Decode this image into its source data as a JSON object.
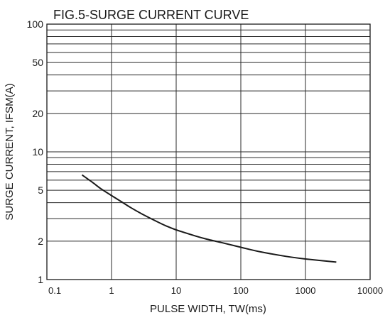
{
  "chart_data": {
    "type": "line",
    "title": "FIG.5-SURGE CURRENT CURVE",
    "xlabel": "PULSE WIDTH, TW(ms)",
    "ylabel": "SURGE CURRENT, IFSM(A)",
    "x_scale": "log",
    "y_scale": "log",
    "xlim": [
      0.1,
      10000
    ],
    "ylim": [
      1,
      100
    ],
    "x_ticks": [
      {
        "value": 0.1,
        "label": "0.1"
      },
      {
        "value": 1,
        "label": "1"
      },
      {
        "value": 10,
        "label": "10"
      },
      {
        "value": 100,
        "label": "100"
      },
      {
        "value": 1000,
        "label": "1000"
      },
      {
        "value": 10000,
        "label": "10000"
      }
    ],
    "y_ticks": [
      {
        "value": 1,
        "label": "1"
      },
      {
        "value": 2,
        "label": "2"
      },
      {
        "value": 5,
        "label": "5"
      },
      {
        "value": 10,
        "label": "10"
      },
      {
        "value": 20,
        "label": "20"
      },
      {
        "value": 50,
        "label": "50"
      },
      {
        "value": 100,
        "label": "100"
      }
    ],
    "grid": true,
    "series": [
      {
        "x": [
          0.35,
          0.5,
          0.7,
          1,
          1.5,
          2,
          3,
          5,
          7,
          10,
          20,
          30,
          50,
          100,
          200,
          500,
          1000,
          3000
        ],
        "y": [
          6.6,
          5.8,
          5.1,
          4.55,
          4.0,
          3.65,
          3.25,
          2.85,
          2.63,
          2.45,
          2.19,
          2.07,
          1.95,
          1.79,
          1.65,
          1.52,
          1.45,
          1.37
        ]
      }
    ],
    "colors": {
      "line": "#1a1a1a",
      "grid": "#2a2a2a",
      "text": "#1a1a1a"
    }
  }
}
